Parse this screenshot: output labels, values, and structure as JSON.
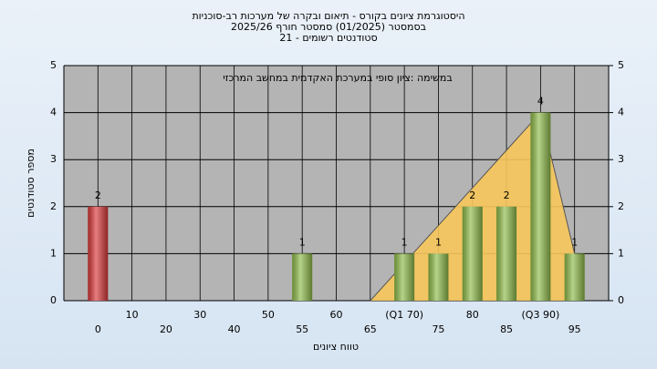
{
  "chart_data": {
    "type": "bar",
    "title": "היסטוגרמת ציונים בקורס - תיאום ובקרה של מערכות רב-סוכניות",
    "subtitle": "בסמסטר  (01/2025)  סמסטר חורף 2025/26",
    "subtitle2": "סטודנטים רשומים - 21",
    "annotation": "במשימה :ציון סופי במערכת האקדמית במחשב המרכזי",
    "x_label": "טווח ציונים",
    "y_label": "מספר סטודנטים",
    "categories": [
      "0",
      "10",
      "20",
      "30",
      "40",
      "50",
      "55",
      "60",
      "65",
      "(Q1 70)",
      "75",
      "80",
      "85",
      "(Q3 90)",
      "95"
    ],
    "values": [
      2,
      0,
      0,
      0,
      0,
      0,
      1,
      0,
      0,
      1,
      1,
      2,
      2,
      4,
      1
    ],
    "colors": [
      "#d9383a",
      "#8fbc4a",
      "#8fbc4a",
      "#8fbc4a",
      "#8fbc4a",
      "#8fbc4a",
      "#8fbc4a",
      "#8fbc4a",
      "#8fbc4a",
      "#8fbc4a",
      "#8fbc4a",
      "#8fbc4a",
      "#8fbc4a",
      "#8fbc4a",
      "#8fbc4a"
    ],
    "trend": {
      "color": "#f7c65a",
      "values": [
        null,
        null,
        null,
        null,
        null,
        null,
        null,
        null,
        0,
        0.8,
        1.6,
        2.4,
        3.2,
        4,
        1
      ]
    },
    "ylim": [
      0,
      5
    ],
    "yticks": [
      0,
      1,
      2,
      3,
      4,
      5
    ],
    "y2lim": [
      0,
      5
    ],
    "y2ticks": [
      0,
      1,
      2,
      3,
      4,
      5
    ],
    "grid": true
  }
}
